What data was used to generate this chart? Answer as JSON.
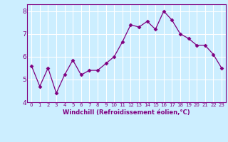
{
  "x": [
    0,
    1,
    2,
    3,
    4,
    5,
    6,
    7,
    8,
    9,
    10,
    11,
    12,
    13,
    14,
    15,
    16,
    17,
    18,
    19,
    20,
    21,
    22,
    23
  ],
  "y": [
    5.6,
    4.7,
    5.5,
    4.4,
    5.2,
    5.85,
    5.2,
    5.4,
    5.4,
    5.7,
    6.0,
    6.65,
    7.4,
    7.3,
    7.55,
    7.2,
    8.0,
    7.6,
    7.0,
    6.8,
    6.5,
    6.5,
    6.1,
    5.5
  ],
  "xlabel": "Windchill (Refroidissement éolien,°C)",
  "ylim": [
    4,
    8.3
  ],
  "xlim": [
    -0.5,
    23.5
  ],
  "yticks": [
    4,
    5,
    6,
    7,
    8
  ],
  "xticks": [
    0,
    1,
    2,
    3,
    4,
    5,
    6,
    7,
    8,
    9,
    10,
    11,
    12,
    13,
    14,
    15,
    16,
    17,
    18,
    19,
    20,
    21,
    22,
    23
  ],
  "line_color": "#800080",
  "marker": "D",
  "marker_size": 2.5,
  "bg_color": "#cceeff",
  "grid_color": "#ffffff",
  "axis_label_color": "#800080",
  "tick_color": "#800080",
  "spine_color": "#800080",
  "xlabel_fontsize": 6.0,
  "xtick_fontsize": 5.0,
  "ytick_fontsize": 6.5
}
